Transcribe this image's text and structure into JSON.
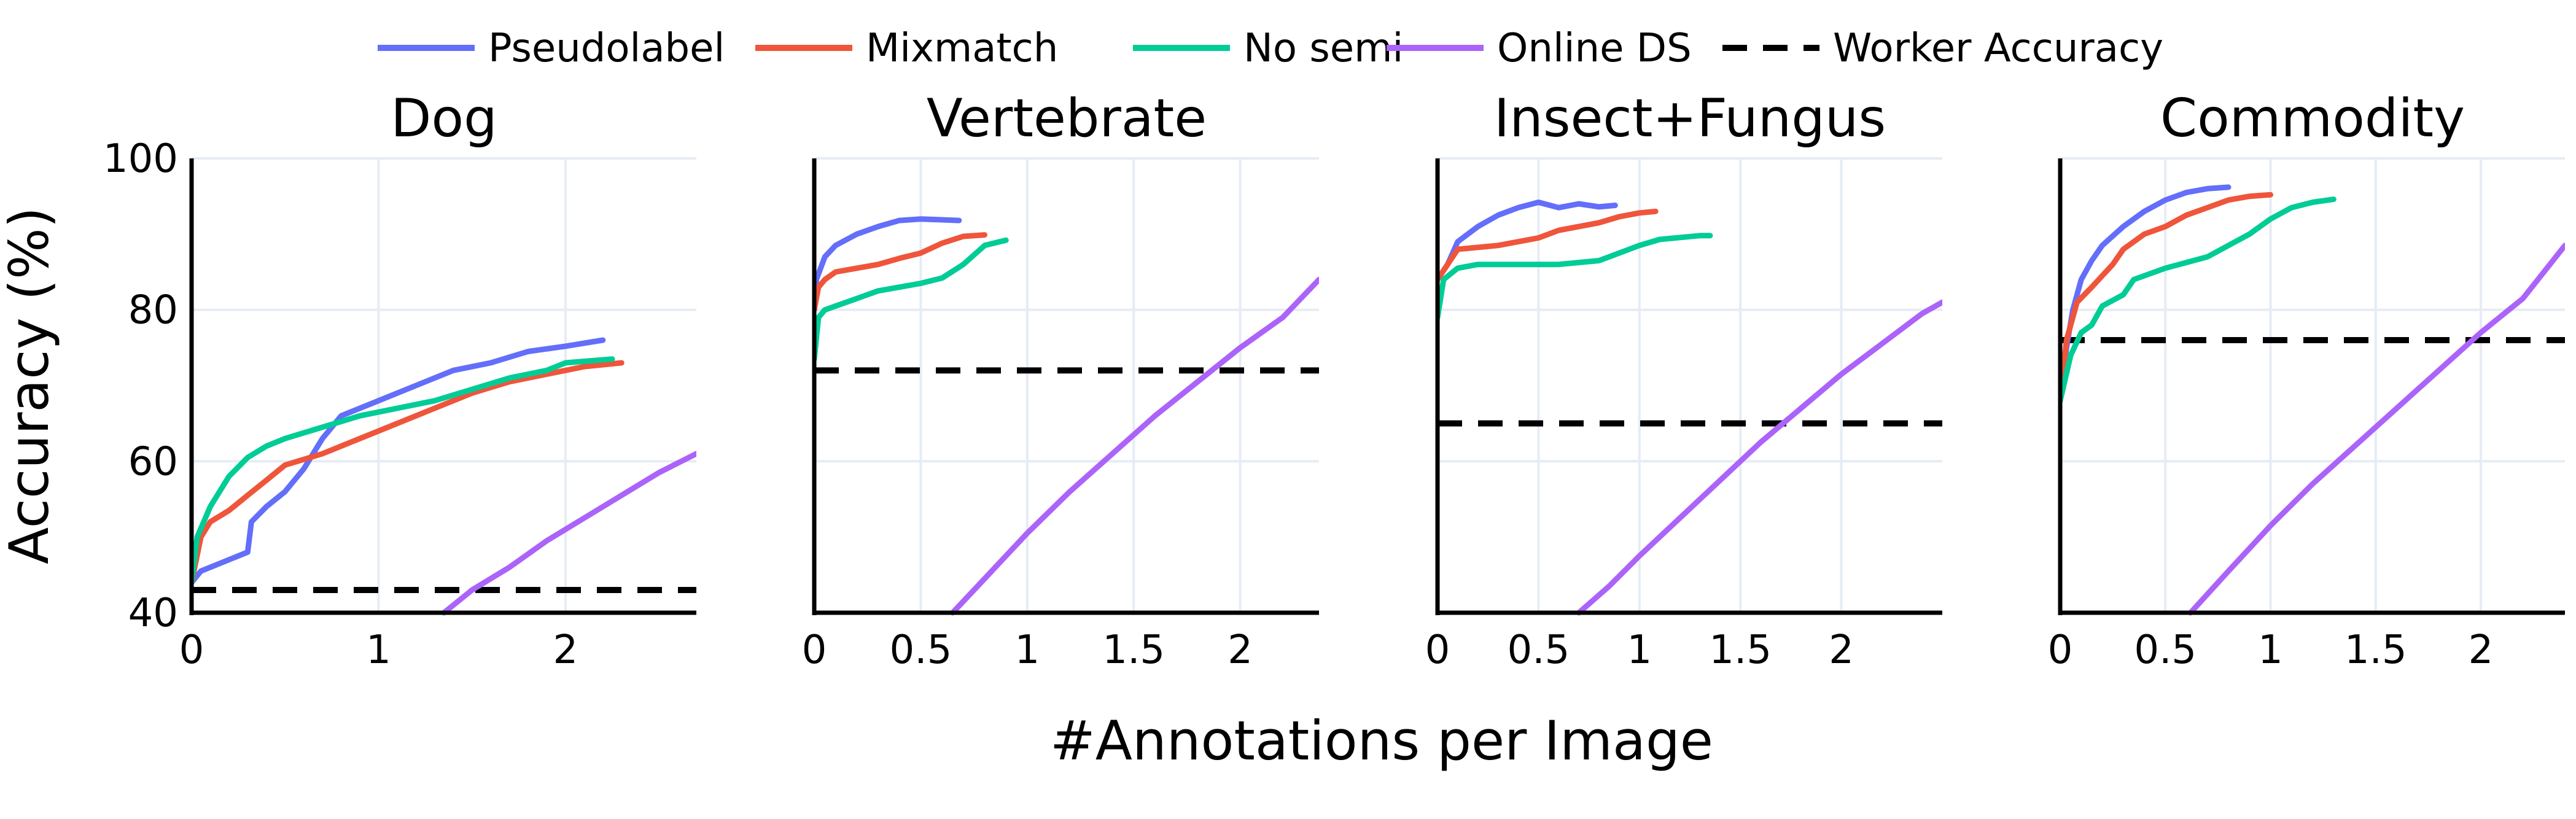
{
  "chart_data": {
    "type": "line",
    "ylabel": "Accuracy (%)",
    "xlabel": "#Annotations per Image",
    "legend": {
      "placement": "top-center",
      "entries": [
        {
          "name": "Pseudolabel",
          "color": "#636EFA",
          "style": "solid"
        },
        {
          "name": "Mixmatch",
          "color": "#EF553B",
          "style": "solid"
        },
        {
          "name": "No semi",
          "color": "#00CC96",
          "style": "solid"
        },
        {
          "name": "Online DS",
          "color": "#AB63FA",
          "style": "solid"
        },
        {
          "name": "Worker Accuracy",
          "color": "#000000",
          "style": "dashed"
        }
      ]
    },
    "grid": true,
    "shared_y": true,
    "ylim": [
      40,
      100
    ],
    "yticks": [
      "40",
      "60",
      "80",
      "100"
    ],
    "panels": [
      {
        "title": "Dog",
        "xlim": [
          0,
          2.7
        ],
        "xticks": [
          {
            "v": 0,
            "label": "0"
          },
          {
            "v": 1,
            "label": "1"
          },
          {
            "v": 2,
            "label": "2"
          }
        ],
        "worker_accuracy": 43,
        "series": [
          {
            "name": "Pseudolabel",
            "points": [
              [
                0,
                44
              ],
              [
                0.05,
                45.5
              ],
              [
                0.3,
                48
              ],
              [
                0.32,
                52
              ],
              [
                0.4,
                54
              ],
              [
                0.5,
                56
              ],
              [
                0.6,
                59
              ],
              [
                0.7,
                63
              ],
              [
                0.8,
                66
              ],
              [
                1.0,
                68
              ],
              [
                1.2,
                70
              ],
              [
                1.4,
                72
              ],
              [
                1.6,
                73
              ],
              [
                1.8,
                74.5
              ],
              [
                2.0,
                75.2
              ],
              [
                2.2,
                76
              ]
            ]
          },
          {
            "name": "Mixmatch",
            "points": [
              [
                0,
                44
              ],
              [
                0.05,
                50
              ],
              [
                0.1,
                52
              ],
              [
                0.2,
                53.5
              ],
              [
                0.3,
                55.5
              ],
              [
                0.4,
                57.5
              ],
              [
                0.5,
                59.5
              ],
              [
                0.7,
                61
              ],
              [
                0.9,
                63
              ],
              [
                1.1,
                65
              ],
              [
                1.3,
                67
              ],
              [
                1.5,
                69
              ],
              [
                1.7,
                70.5
              ],
              [
                1.9,
                71.5
              ],
              [
                2.1,
                72.5
              ],
              [
                2.3,
                73
              ]
            ]
          },
          {
            "name": "No semi",
            "points": [
              [
                0,
                44
              ],
              [
                0.03,
                50
              ],
              [
                0.1,
                54
              ],
              [
                0.2,
                58
              ],
              [
                0.3,
                60.5
              ],
              [
                0.4,
                62
              ],
              [
                0.5,
                63
              ],
              [
                0.7,
                64.5
              ],
              [
                0.9,
                66
              ],
              [
                1.1,
                67
              ],
              [
                1.3,
                68
              ],
              [
                1.5,
                69.5
              ],
              [
                1.7,
                71
              ],
              [
                1.9,
                72
              ],
              [
                2.0,
                73
              ],
              [
                2.25,
                73.5
              ]
            ]
          },
          {
            "name": "Online DS",
            "points": [
              [
                1.35,
                40
              ],
              [
                1.5,
                43
              ],
              [
                1.7,
                46
              ],
              [
                1.9,
                49.5
              ],
              [
                2.1,
                52.5
              ],
              [
                2.3,
                55.5
              ],
              [
                2.5,
                58.5
              ],
              [
                2.7,
                61
              ]
            ]
          }
        ]
      },
      {
        "title": "Vertebrate",
        "xlim": [
          0,
          2.37
        ],
        "xticks": [
          {
            "v": 0,
            "label": "0"
          },
          {
            "v": 0.5,
            "label": "0.5"
          },
          {
            "v": 1,
            "label": "1"
          },
          {
            "v": 1.5,
            "label": "1.5"
          },
          {
            "v": 2,
            "label": "2"
          }
        ],
        "worker_accuracy": 72,
        "series": [
          {
            "name": "Pseudolabel",
            "points": [
              [
                0,
                80
              ],
              [
                0.01,
                84
              ],
              [
                0.05,
                87
              ],
              [
                0.1,
                88.5
              ],
              [
                0.2,
                90
              ],
              [
                0.3,
                91
              ],
              [
                0.4,
                91.8
              ],
              [
                0.5,
                92
              ],
              [
                0.68,
                91.8
              ]
            ]
          },
          {
            "name": "Mixmatch",
            "points": [
              [
                0,
                80
              ],
              [
                0.02,
                83
              ],
              [
                0.05,
                84
              ],
              [
                0.1,
                85
              ],
              [
                0.2,
                85.5
              ],
              [
                0.3,
                86
              ],
              [
                0.4,
                86.8
              ],
              [
                0.5,
                87.5
              ],
              [
                0.6,
                88.8
              ],
              [
                0.7,
                89.7
              ],
              [
                0.8,
                89.9
              ]
            ]
          },
          {
            "name": "No semi",
            "points": [
              [
                0,
                73.5
              ],
              [
                0.02,
                79
              ],
              [
                0.05,
                80
              ],
              [
                0.1,
                80.5
              ],
              [
                0.2,
                81.5
              ],
              [
                0.3,
                82.5
              ],
              [
                0.4,
                83
              ],
              [
                0.5,
                83.5
              ],
              [
                0.6,
                84.2
              ],
              [
                0.7,
                86
              ],
              [
                0.8,
                88.5
              ],
              [
                0.9,
                89.2
              ]
            ]
          },
          {
            "name": "Online DS",
            "points": [
              [
                0.65,
                40
              ],
              [
                0.8,
                44.5
              ],
              [
                1.0,
                50.5
              ],
              [
                1.2,
                56
              ],
              [
                1.4,
                61
              ],
              [
                1.6,
                66
              ],
              [
                1.8,
                70.5
              ],
              [
                2.0,
                75
              ],
              [
                2.2,
                79
              ],
              [
                2.37,
                84
              ]
            ]
          }
        ]
      },
      {
        "title": "Insect+Fungus",
        "xlim": [
          0,
          2.5
        ],
        "xticks": [
          {
            "v": 0,
            "label": "0"
          },
          {
            "v": 0.5,
            "label": "0.5"
          },
          {
            "v": 1,
            "label": "1"
          },
          {
            "v": 1.5,
            "label": "1.5"
          },
          {
            "v": 2,
            "label": "2"
          }
        ],
        "worker_accuracy": 65,
        "series": [
          {
            "name": "Pseudolabel",
            "points": [
              [
                0,
                84
              ],
              [
                0.05,
                86
              ],
              [
                0.1,
                89
              ],
              [
                0.2,
                91
              ],
              [
                0.3,
                92.5
              ],
              [
                0.4,
                93.5
              ],
              [
                0.5,
                94.2
              ],
              [
                0.6,
                93.5
              ],
              [
                0.7,
                94
              ],
              [
                0.8,
                93.6
              ],
              [
                0.88,
                93.8
              ]
            ]
          },
          {
            "name": "Mixmatch",
            "points": [
              [
                0,
                84
              ],
              [
                0.05,
                86
              ],
              [
                0.1,
                88
              ],
              [
                0.3,
                88.5
              ],
              [
                0.5,
                89.5
              ],
              [
                0.6,
                90.5
              ],
              [
                0.8,
                91.5
              ],
              [
                0.9,
                92.3
              ],
              [
                1.0,
                92.8
              ],
              [
                1.08,
                93
              ]
            ]
          },
          {
            "name": "No semi",
            "points": [
              [
                0,
                79
              ],
              [
                0.03,
                84
              ],
              [
                0.1,
                85.5
              ],
              [
                0.2,
                86
              ],
              [
                0.4,
                86
              ],
              [
                0.6,
                86
              ],
              [
                0.8,
                86.5
              ],
              [
                0.9,
                87.5
              ],
              [
                1.0,
                88.5
              ],
              [
                1.1,
                89.3
              ],
              [
                1.3,
                89.8
              ],
              [
                1.35,
                89.8
              ]
            ]
          },
          {
            "name": "Online DS",
            "points": [
              [
                0.7,
                40
              ],
              [
                0.85,
                43.5
              ],
              [
                1.0,
                47.5
              ],
              [
                1.2,
                52.5
              ],
              [
                1.4,
                57.5
              ],
              [
                1.6,
                62.5
              ],
              [
                1.8,
                67
              ],
              [
                2.0,
                71.5
              ],
              [
                2.2,
                75.5
              ],
              [
                2.4,
                79.5
              ],
              [
                2.5,
                81
              ]
            ]
          }
        ]
      },
      {
        "title": "Commodity",
        "xlim": [
          0,
          2.4
        ],
        "xticks": [
          {
            "v": 0,
            "label": "0"
          },
          {
            "v": 0.5,
            "label": "0.5"
          },
          {
            "v": 1,
            "label": "1"
          },
          {
            "v": 1.5,
            "label": "1.5"
          },
          {
            "v": 2,
            "label": "2"
          }
        ],
        "worker_accuracy": 76,
        "series": [
          {
            "name": "Pseudolabel",
            "points": [
              [
                0,
                68
              ],
              [
                0.03,
                75
              ],
              [
                0.06,
                80
              ],
              [
                0.1,
                84
              ],
              [
                0.15,
                86.5
              ],
              [
                0.2,
                88.5
              ],
              [
                0.3,
                91
              ],
              [
                0.4,
                93
              ],
              [
                0.5,
                94.5
              ],
              [
                0.6,
                95.5
              ],
              [
                0.7,
                96
              ],
              [
                0.8,
                96.2
              ]
            ]
          },
          {
            "name": "Mixmatch",
            "points": [
              [
                0,
                68
              ],
              [
                0.03,
                76
              ],
              [
                0.08,
                81
              ],
              [
                0.15,
                83
              ],
              [
                0.25,
                86
              ],
              [
                0.3,
                88
              ],
              [
                0.4,
                90
              ],
              [
                0.5,
                91
              ],
              [
                0.6,
                92.5
              ],
              [
                0.7,
                93.5
              ],
              [
                0.8,
                94.5
              ],
              [
                0.9,
                95
              ],
              [
                1.0,
                95.2
              ]
            ]
          },
          {
            "name": "No semi",
            "points": [
              [
                0,
                68
              ],
              [
                0.05,
                74
              ],
              [
                0.1,
                77
              ],
              [
                0.15,
                78
              ],
              [
                0.2,
                80.5
              ],
              [
                0.3,
                82
              ],
              [
                0.35,
                84
              ],
              [
                0.5,
                85.5
              ],
              [
                0.7,
                87
              ],
              [
                0.8,
                88.5
              ],
              [
                0.9,
                90
              ],
              [
                1.0,
                92
              ],
              [
                1.1,
                93.5
              ],
              [
                1.2,
                94.2
              ],
              [
                1.3,
                94.6
              ]
            ]
          },
          {
            "name": "Online DS",
            "points": [
              [
                0.62,
                40
              ],
              [
                0.8,
                45.5
              ],
              [
                1.0,
                51.5
              ],
              [
                1.2,
                57
              ],
              [
                1.4,
                62
              ],
              [
                1.6,
                67
              ],
              [
                1.8,
                72
              ],
              [
                2.0,
                77
              ],
              [
                2.2,
                81.5
              ],
              [
                2.4,
                88.5
              ]
            ]
          }
        ]
      }
    ]
  }
}
